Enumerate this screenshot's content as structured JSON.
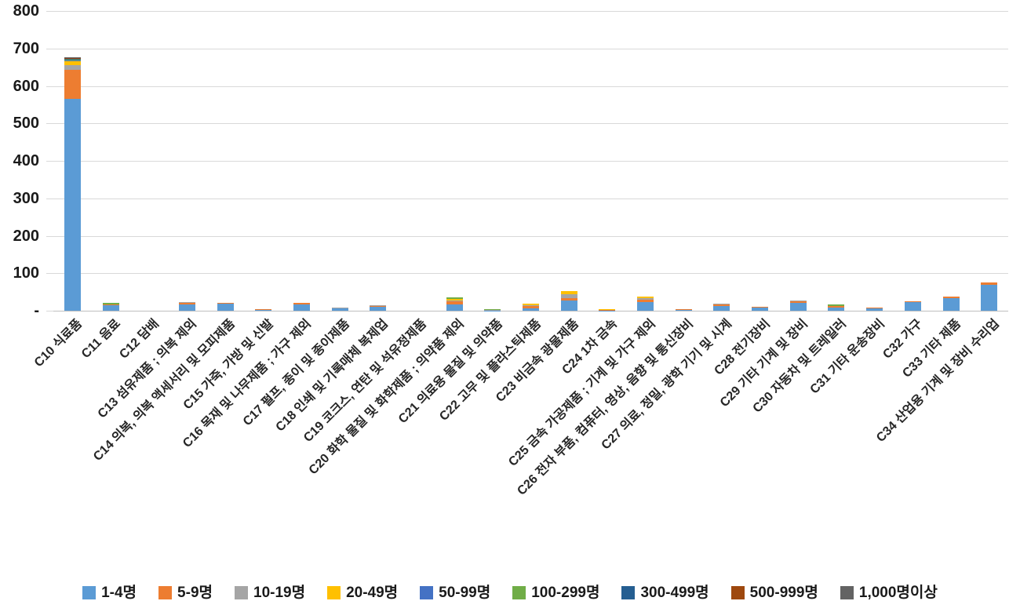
{
  "chart_data": {
    "type": "bar",
    "stacked": true,
    "title": "",
    "xlabel": "",
    "ylabel": "",
    "grid": true,
    "legend_position": "bottom",
    "y_axis": {
      "min": 0,
      "max": 800,
      "step": 100,
      "tick_labels_top_to_bottom": [
        "800",
        "700",
        "600",
        "500",
        "400",
        "300",
        "200",
        "100",
        "-"
      ]
    },
    "categories": [
      "C10 식료품",
      "C11 음료",
      "C12 담배",
      "C13 섬유제품 ; 의복 제외",
      "C14 의복, 의복 액세서리 및 모피제품",
      "C15 가죽, 가방 및 신발",
      "C16 목재 및 나무제품 ; 가구 제외",
      "C17 펄프, 종이 및 종이제품",
      "C18 인쇄 및 기록매체 복제업",
      "C19 코크스, 연탄 및 석유정제품",
      "C20 화학 물질 및 화학제품 ; 의약품 제외",
      "C21 의료용 물질 및 의약품",
      "C22 고무 및 플라스틱제품",
      "C23 비금속 광물제품",
      "C24 1차 금속",
      "C25 금속 가공제품 ; 기계 및 가구 제외",
      "C26 전자 부품, 컴퓨터, 영상, 음향 및 통신장비",
      "C27 의료, 정밀, 광학 기기 및 시계",
      "C28 전기장비",
      "C29 기타 기계 및 장비",
      "C30 자동차 및 트레일러",
      "C31 기타 운송장비",
      "C32 가구",
      "C33 기타 제품",
      "C34 산업용 기계 및 장비 수리업"
    ],
    "series": [
      {
        "name": "1-4명",
        "color": "#5B9BD5",
        "values": [
          565,
          15,
          0,
          16,
          18,
          4,
          17,
          6,
          10,
          0,
          17,
          1,
          7,
          27,
          1,
          23,
          4,
          13,
          9,
          20,
          9,
          7,
          23,
          33,
          70
        ]
      },
      {
        "name": "5-9명",
        "color": "#ED7D31",
        "values": [
          78,
          1,
          0,
          7,
          2,
          1,
          4,
          2,
          3,
          0,
          10,
          0,
          6,
          6,
          1,
          6,
          1,
          4,
          2,
          6,
          4,
          1,
          3,
          5,
          5
        ]
      },
      {
        "name": "10-19명",
        "color": "#A5A5A5",
        "values": [
          13,
          0,
          0,
          1,
          0,
          0,
          0,
          1,
          1,
          0,
          1,
          1,
          2,
          10,
          0,
          4,
          0,
          1,
          0,
          1,
          0,
          0,
          0,
          0,
          0
        ]
      },
      {
        "name": "20-49명",
        "color": "#FFC000",
        "values": [
          10,
          0,
          0,
          0,
          0,
          0,
          0,
          0,
          0,
          0,
          4,
          0,
          4,
          9,
          3,
          5,
          0,
          0,
          0,
          0,
          0,
          0,
          0,
          0,
          0
        ]
      },
      {
        "name": "50-99명",
        "color": "#4472C4",
        "values": [
          3,
          0,
          0,
          0,
          0,
          0,
          0,
          0,
          0,
          0,
          0,
          0,
          0,
          0,
          0,
          0,
          0,
          0,
          0,
          0,
          0,
          0,
          0,
          0,
          0
        ]
      },
      {
        "name": "100-299명",
        "color": "#70AD47",
        "values": [
          2,
          4,
          0,
          0,
          0,
          0,
          0,
          0,
          0,
          0,
          4,
          3,
          0,
          0,
          0,
          0,
          0,
          0,
          0,
          0,
          3,
          0,
          0,
          0,
          0
        ]
      },
      {
        "name": "300-499명",
        "color": "#255E91",
        "values": [
          1,
          0,
          0,
          0,
          0,
          0,
          0,
          0,
          0,
          0,
          0,
          0,
          0,
          0,
          0,
          0,
          0,
          0,
          0,
          0,
          0,
          0,
          0,
          0,
          0
        ]
      },
      {
        "name": "500-999명",
        "color": "#9E480E",
        "values": [
          2,
          0,
          0,
          0,
          0,
          0,
          0,
          0,
          0,
          0,
          0,
          0,
          0,
          0,
          0,
          0,
          0,
          0,
          0,
          0,
          0,
          0,
          0,
          0,
          0
        ]
      },
      {
        "name": "1,000명이상",
        "color": "#636363",
        "values": [
          2,
          0,
          0,
          0,
          0,
          0,
          0,
          0,
          0,
          0,
          0,
          0,
          0,
          0,
          0,
          0,
          0,
          0,
          0,
          0,
          0,
          0,
          0,
          0,
          0
        ]
      }
    ],
    "style_colors": {
      "gridline": "#D9D9D9",
      "axis_line": "#BFBFBF",
      "tick_text": "#1a1a1a",
      "category_text": "#262626"
    }
  }
}
